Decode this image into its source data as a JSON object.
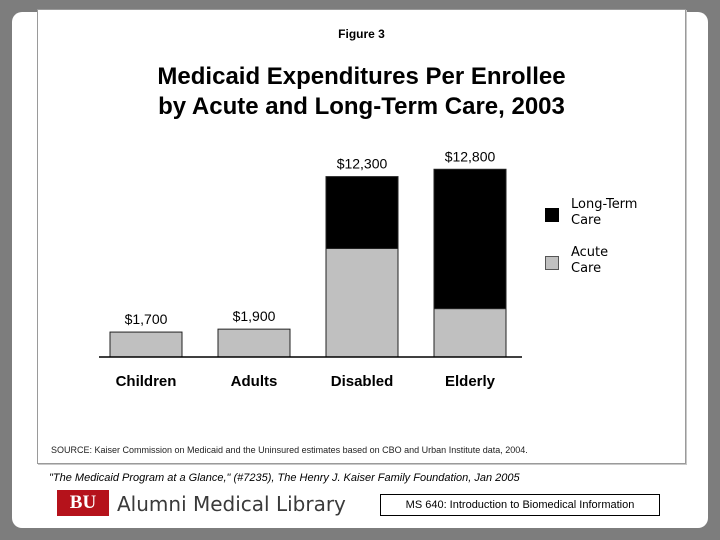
{
  "figure_label": "Figure 3",
  "title_line1": "Medicaid Expenditures Per Enrollee",
  "title_line2": "by Acute and Long-Term Care, 2003",
  "source": "SOURCE: Kaiser Commission on Medicaid and the Uninsured estimates based on CBO and Urban Institute data, 2004.",
  "citation": "\"The Medicaid Program at a Glance,\" (#7235), The Henry J. Kaiser Family Foundation, Jan 2005",
  "logo": {
    "text": "BU",
    "color": "#b5121b"
  },
  "library_name": "Alumni Medical Library",
  "course": "MS 640: Introduction to Biomedical Information",
  "legend": {
    "long_term_line1": "Long-Term",
    "long_term_line2": "Care",
    "acute_line1": "Acute",
    "acute_line2": "Care"
  },
  "chart_data": {
    "type": "bar",
    "stacked": true,
    "categories": [
      "Children",
      "Adults",
      "Disabled",
      "Elderly"
    ],
    "series": [
      {
        "name": "Acute Care",
        "color": "#c0c0c0",
        "values": [
          1700,
          1900,
          7400,
          3300
        ]
      },
      {
        "name": "Long-Term Care",
        "color": "#000000",
        "values": [
          0,
          0,
          4900,
          9500
        ]
      }
    ],
    "totals": [
      1700,
      1900,
      12300,
      12800
    ],
    "total_labels": [
      "$1,700",
      "$1,900",
      "$12,300",
      "$12,800"
    ],
    "ylim": [
      0,
      13500
    ],
    "grid": false,
    "legend_position": "right"
  }
}
